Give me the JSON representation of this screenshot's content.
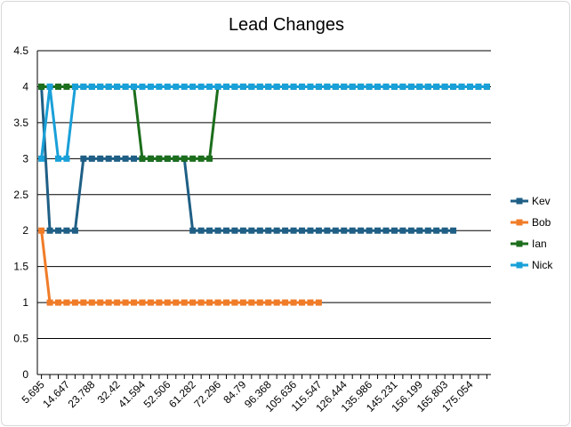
{
  "chart_data": {
    "type": "line",
    "title": "Lead Changes",
    "xlabel": "",
    "ylabel": "",
    "ylim": [
      0,
      4.5
    ],
    "y_ticks": [
      "0",
      "0.5",
      "1",
      "1.5",
      "2",
      "2.5",
      "3",
      "3.5",
      "4",
      "4.5"
    ],
    "x_tick_labels": [
      "5.695",
      "14.647",
      "23.788",
      "32.42",
      "41.594",
      "52.506",
      "61.282",
      "72.296",
      "84.79",
      "96.368",
      "105.636",
      "115.547",
      "126.444",
      "135.986",
      "145.231",
      "156.199",
      "165.803",
      "175.054"
    ],
    "x_point_count": 54,
    "grid": "horizontal",
    "legend_position": "right",
    "series": [
      {
        "name": "Kev",
        "color": "#1f5f85",
        "values": [
          4,
          2,
          2,
          2,
          2,
          3,
          3,
          3,
          3,
          3,
          3,
          3,
          3,
          3,
          3,
          3,
          3,
          3,
          2,
          2,
          2,
          2,
          2,
          2,
          2,
          2,
          2,
          2,
          2,
          2,
          2,
          2,
          2,
          2,
          2,
          2,
          2,
          2,
          2,
          2,
          2,
          2,
          2,
          2,
          2,
          2,
          2,
          2,
          2,
          2
        ]
      },
      {
        "name": "Bob",
        "color": "#f07c28",
        "values": [
          2,
          1,
          1,
          1,
          1,
          1,
          1,
          1,
          1,
          1,
          1,
          1,
          1,
          1,
          1,
          1,
          1,
          1,
          1,
          1,
          1,
          1,
          1,
          1,
          1,
          1,
          1,
          1,
          1,
          1,
          1,
          1,
          1,
          1
        ]
      },
      {
        "name": "Ian",
        "color": "#1c6e1c",
        "values": [
          4,
          4,
          4,
          4,
          4,
          4,
          4,
          4,
          4,
          4,
          4,
          4,
          3,
          3,
          3,
          3,
          3,
          3,
          3,
          3,
          3,
          4,
          4,
          4,
          4,
          4,
          4,
          4,
          4,
          4,
          4,
          4,
          4,
          4,
          4,
          4,
          4,
          4,
          4,
          4,
          4,
          4,
          4,
          4,
          4,
          4,
          4,
          4,
          4,
          4,
          4,
          4,
          4,
          4
        ]
      },
      {
        "name": "Nick",
        "color": "#19a0d8",
        "values": [
          3,
          4,
          3,
          3,
          4,
          4,
          4,
          4,
          4,
          4,
          4,
          4,
          4,
          4,
          4,
          4,
          4,
          4,
          4,
          4,
          4,
          4,
          4,
          4,
          4,
          4,
          4,
          4,
          4,
          4,
          4,
          4,
          4,
          4,
          4,
          4,
          4,
          4,
          4,
          4,
          4,
          4,
          4,
          4,
          4,
          4,
          4,
          4,
          4,
          4,
          4,
          4,
          4,
          4
        ]
      }
    ]
  }
}
